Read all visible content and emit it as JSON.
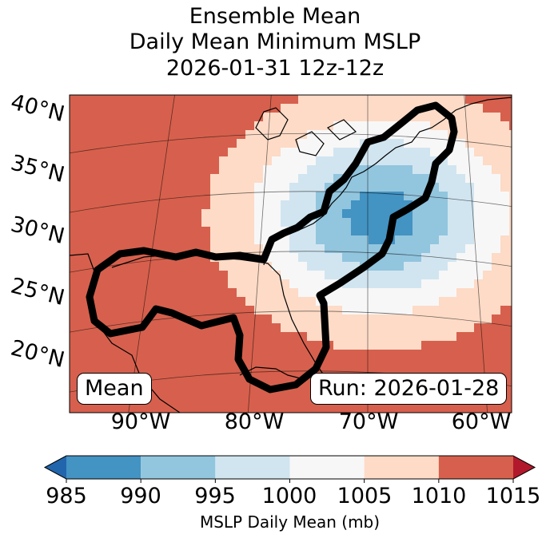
{
  "title": {
    "line1": "Ensemble Mean",
    "line2": "Daily Mean Minimum MSLP",
    "line3": "2026-01-31 12z-12z"
  },
  "map": {
    "lat_labels": [
      "40°N",
      "35°N",
      "30°N",
      "25°N",
      "20°N"
    ],
    "lon_labels": [
      "90°W",
      "80°W",
      "70°W",
      "60°W"
    ],
    "mean_label": "Mean",
    "run_label": "Run: 2026-01-28",
    "outline_color": "#000000",
    "mslp_field": {
      "ambient_mb": 1013,
      "low_center": {
        "lon": -70.5,
        "lat": 31.5,
        "min_mb": 988
      }
    }
  },
  "colorbar": {
    "label": "MSLP Daily Mean (mb)",
    "ticks": [
      "985",
      "990",
      "995",
      "1000",
      "1005",
      "1010",
      "1015"
    ],
    "colors": [
      "#2166ac",
      "#4393c3",
      "#92c5de",
      "#d1e5f0",
      "#f7f7f7",
      "#fddbc7",
      "#d6604d",
      "#b2182b"
    ]
  }
}
